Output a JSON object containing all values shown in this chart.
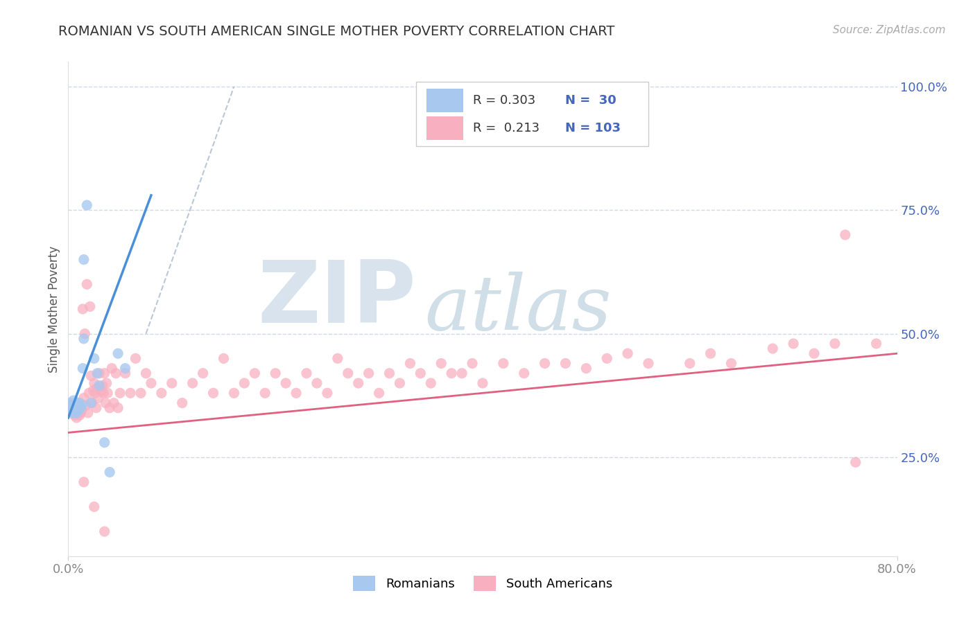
{
  "title": "ROMANIAN VS SOUTH AMERICAN SINGLE MOTHER POVERTY CORRELATION CHART",
  "source": "Source: ZipAtlas.com",
  "ylabel": "Single Mother Poverty",
  "yticks": [
    0.25,
    0.5,
    0.75,
    1.0
  ],
  "ytick_labels": [
    "25.0%",
    "50.0%",
    "75.0%",
    "100.0%"
  ],
  "xmin": 0.0,
  "xmax": 0.8,
  "ymin": 0.05,
  "ymax": 1.05,
  "legend_R1": "0.303",
  "legend_N1": "30",
  "legend_R2": "0.213",
  "legend_N2": "103",
  "color_romanian": "#a8c8f0",
  "color_sa": "#f8b0c0",
  "color_line_romanian": "#4a90d9",
  "color_line_sa": "#e06080",
  "color_diag": "#b8c8d8",
  "watermark_zip": "ZIP",
  "watermark_atlas": "atlas",
  "watermark_color_zip": "#c8d8e8",
  "watermark_color_atlas": "#b0c8d8",
  "background_color": "#ffffff",
  "grid_color": "#d0d8e8",
  "title_color": "#333333",
  "title_fontsize": 14,
  "axis_label_color": "#555555",
  "legend_label1": "Romanians",
  "legend_label2": "South Americans",
  "tick_label_color": "#4466bb",
  "ro_line": {
    "x0": 0.0,
    "x1": 0.08,
    "y0": 0.33,
    "y1": 0.78
  },
  "sa_line": {
    "x0": 0.0,
    "x1": 0.8,
    "y0": 0.3,
    "y1": 0.46
  },
  "diag_line": {
    "x0": 0.075,
    "x1": 0.16,
    "y0": 0.5,
    "y1": 1.0
  }
}
